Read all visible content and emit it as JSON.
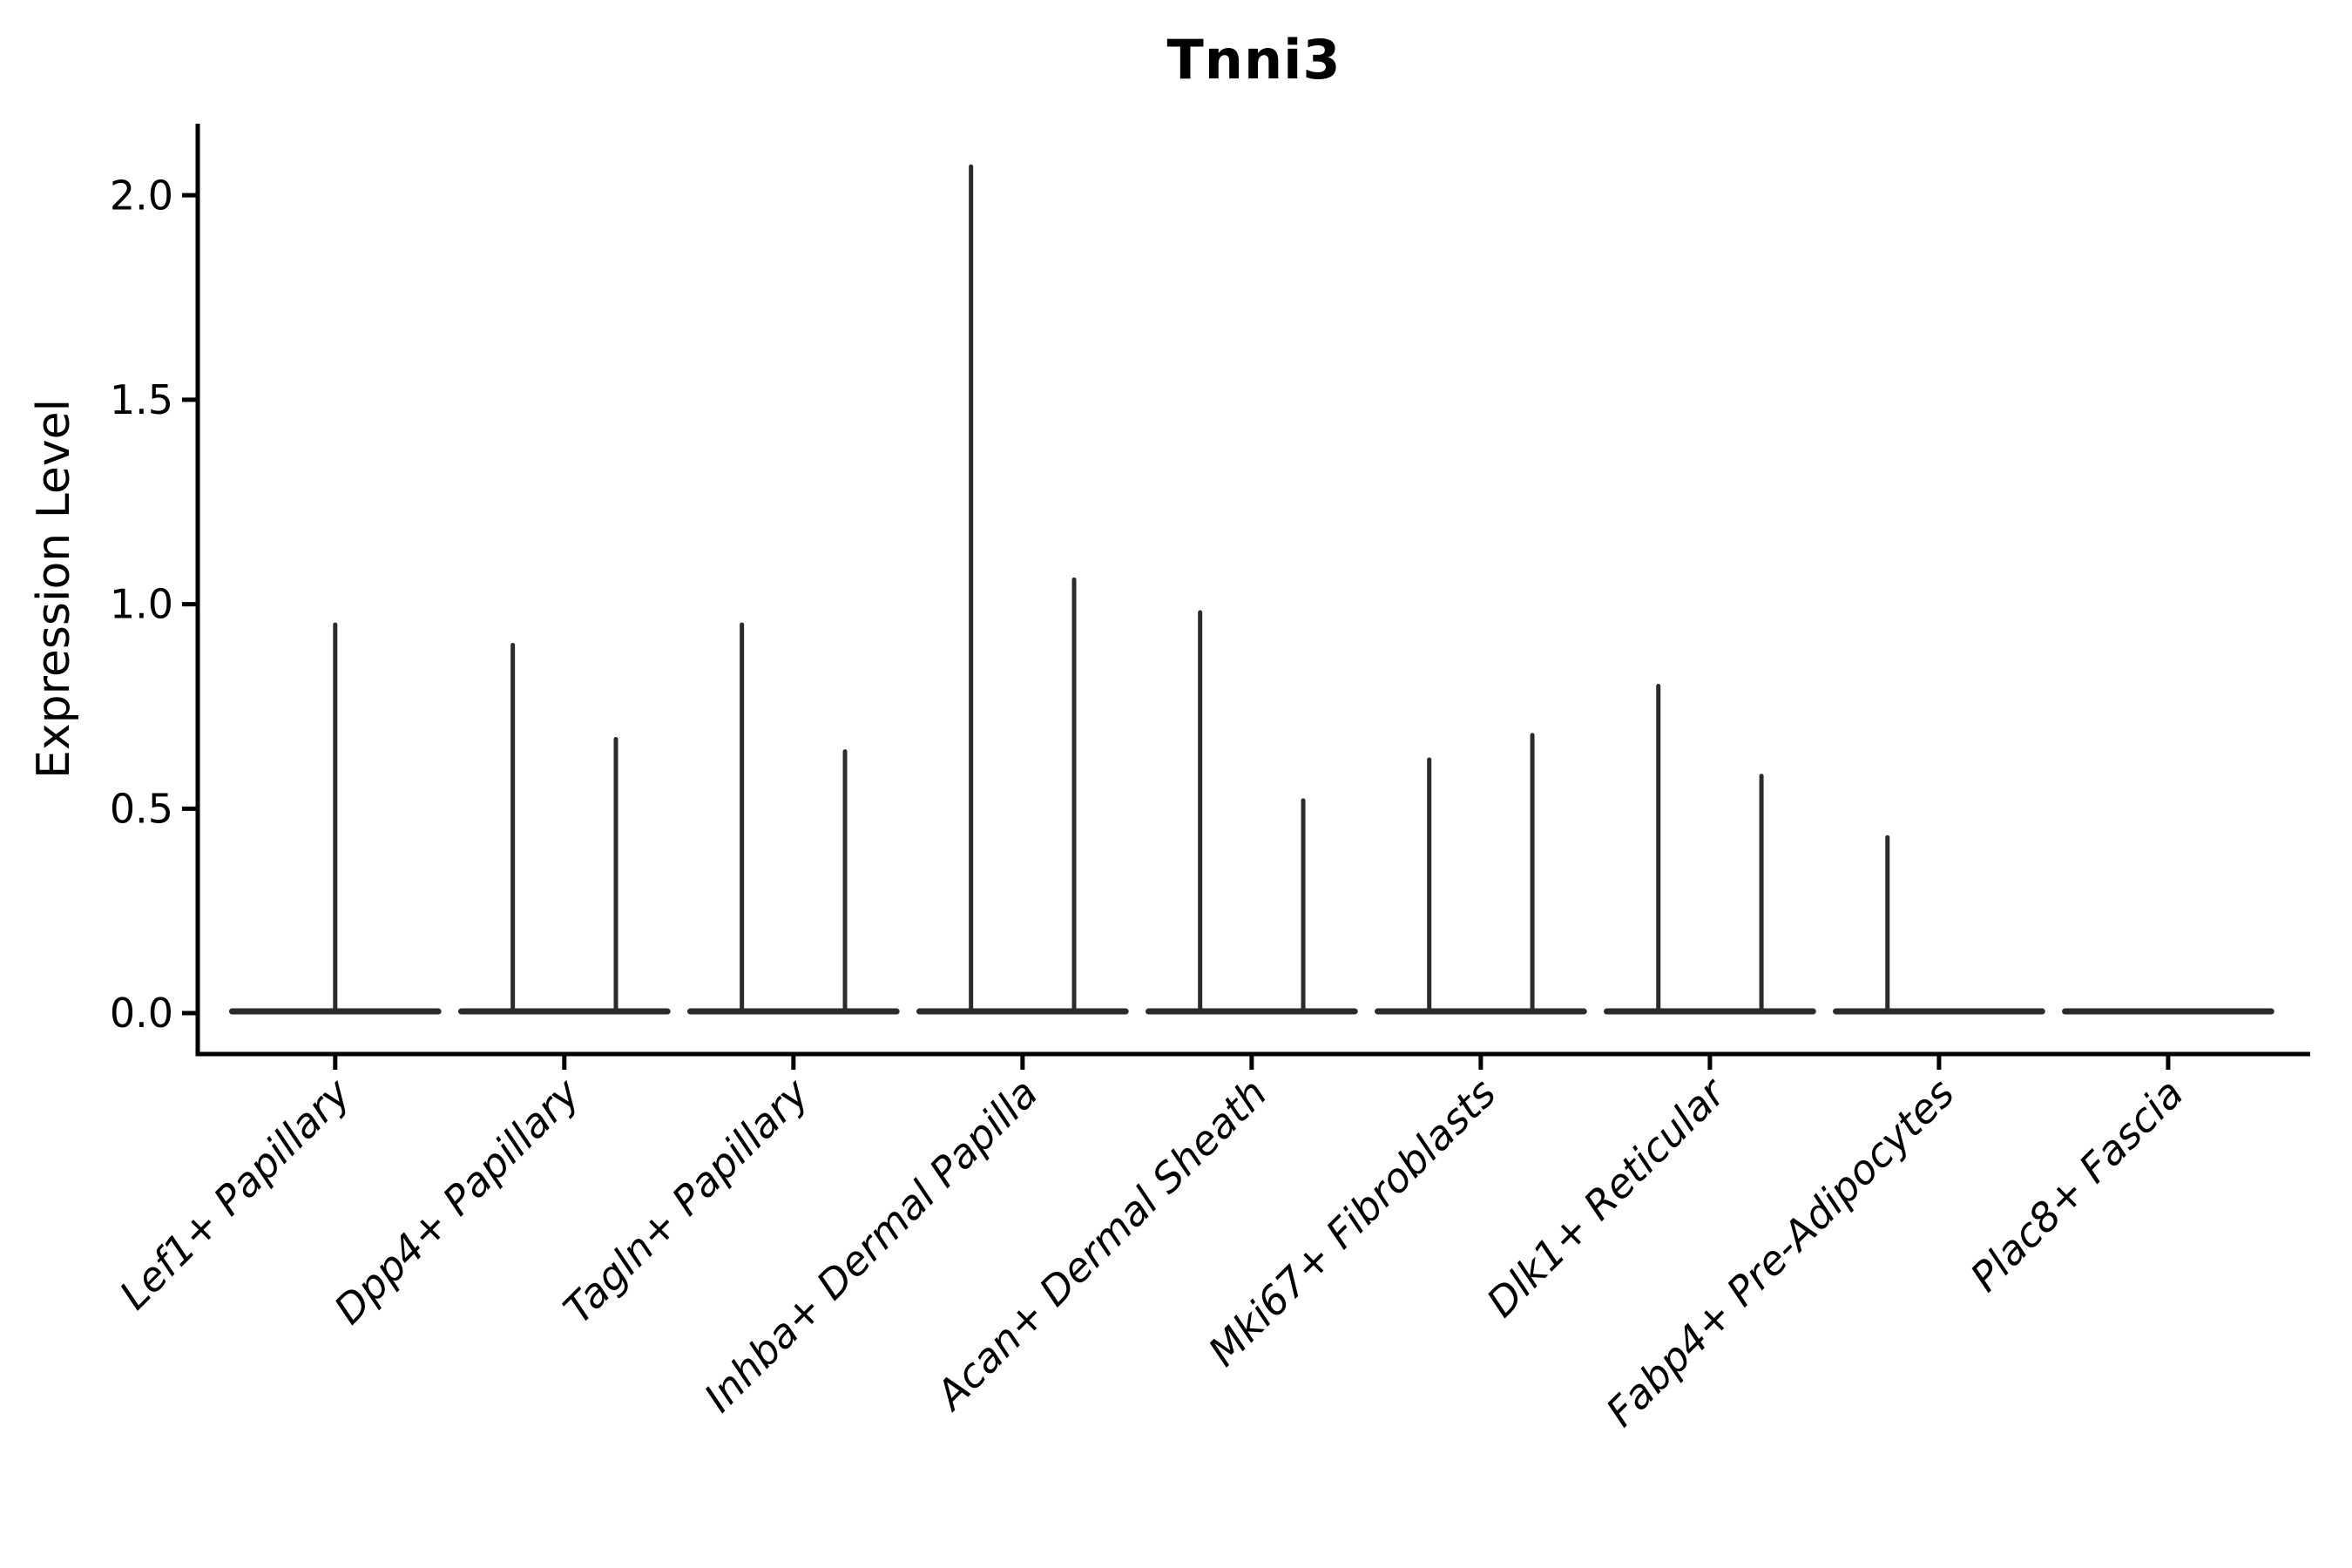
{
  "figure": {
    "background": "#ffffff"
  },
  "chart": {
    "title": "Tnni3",
    "ylabel": "Expression Level"
  },
  "chart_data": {
    "type": "violin",
    "title": "Tnni3",
    "xlabel": "",
    "ylabel": "Expression Level",
    "grid": false,
    "legend": null,
    "y_ticks": [
      0.0,
      0.5,
      1.0,
      1.5,
      2.0
    ],
    "y_tick_labels": [
      "0.0",
      "0.5",
      "1.0",
      "1.5",
      "2.0"
    ],
    "ylim": [
      -0.1,
      2.175
    ],
    "categories": [
      "Lef1+ Papillary",
      "Dpp4+ Papillary",
      "Tagln+ Papillary",
      "Inhba+ Dermal Papilla",
      "Acan+ Dermal Sheath",
      "Mki67+ Fibroblasts",
      "Dlk1+ Reticular",
      "Fabp4+ Pre-Adipocytes",
      "Plac8+ Fascia"
    ],
    "violins": [
      {
        "category": "Lef1+ Papillary",
        "baseline": 0.0,
        "spikes": [
          {
            "offset": 0.0,
            "peak": 0.95
          }
        ]
      },
      {
        "category": "Dpp4+ Papillary",
        "baseline": 0.0,
        "spikes": [
          {
            "offset": -0.225,
            "peak": 0.9
          },
          {
            "offset": 0.225,
            "peak": 0.67
          }
        ]
      },
      {
        "category": "Tagln+ Papillary",
        "baseline": 0.0,
        "spikes": [
          {
            "offset": -0.225,
            "peak": 0.95
          },
          {
            "offset": 0.225,
            "peak": 0.64
          }
        ]
      },
      {
        "category": "Inhba+ Dermal Papilla",
        "baseline": 0.0,
        "spikes": [
          {
            "offset": -0.225,
            "peak": 2.07
          },
          {
            "offset": 0.225,
            "peak": 1.06
          }
        ]
      },
      {
        "category": "Acan+ Dermal Sheath",
        "baseline": 0.0,
        "spikes": [
          {
            "offset": -0.225,
            "peak": 0.98
          },
          {
            "offset": 0.225,
            "peak": 0.52
          }
        ]
      },
      {
        "category": "Mki67+ Fibroblasts",
        "baseline": 0.0,
        "spikes": [
          {
            "offset": -0.225,
            "peak": 0.62
          },
          {
            "offset": 0.225,
            "peak": 0.68
          }
        ]
      },
      {
        "category": "Dlk1+ Reticular",
        "baseline": 0.0,
        "spikes": [
          {
            "offset": -0.225,
            "peak": 0.8
          },
          {
            "offset": 0.225,
            "peak": 0.58
          }
        ]
      },
      {
        "category": "Fabp4+ Pre-Adipocytes",
        "baseline": 0.0,
        "spikes": [
          {
            "offset": -0.225,
            "peak": 0.43
          }
        ]
      },
      {
        "category": "Plac8+ Fascia",
        "baseline": 0.0,
        "spikes": []
      }
    ],
    "violin_baseline_halfwidth": 0.45,
    "colors": {
      "violin_line": "#2b2b2b",
      "axis": "#000000",
      "text": "#000000",
      "background": "#ffffff"
    }
  }
}
